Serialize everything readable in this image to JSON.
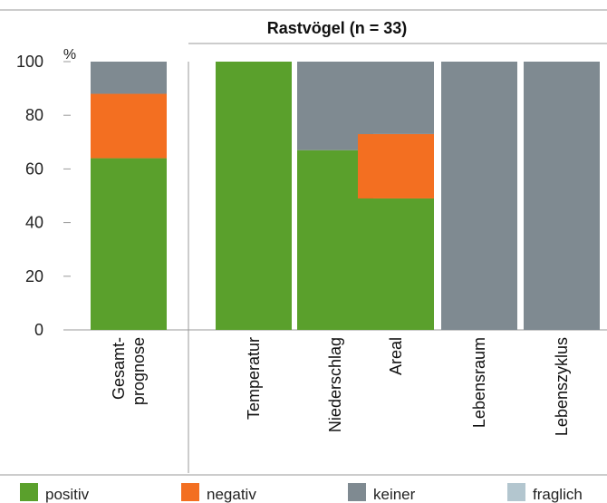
{
  "chart_data": {
    "type": "bar",
    "stacked": true,
    "title": "Rastvögel (n = 33)",
    "ylabel": "%",
    "ylim": [
      0,
      100
    ],
    "yticks": [
      0,
      20,
      40,
      60,
      80,
      100
    ],
    "categories": [
      [
        "Gesamt-",
        "prognose"
      ],
      [
        "Temperatur"
      ],
      [
        "Niederschlag"
      ],
      [
        "Areal"
      ],
      [
        "Lebensraum"
      ],
      [
        "Lebenszyklus"
      ]
    ],
    "series": [
      {
        "name": "positiv",
        "color": "#5aa02c",
        "values": [
          64,
          100,
          67,
          49,
          0,
          0
        ]
      },
      {
        "name": "negativ",
        "color": "#f36f21",
        "values": [
          24,
          0,
          0,
          24,
          0,
          0
        ]
      },
      {
        "name": "keiner",
        "color": "#7f8a91",
        "values": [
          12,
          0,
          33,
          27,
          100,
          100
        ]
      },
      {
        "name": "fraglich",
        "color": "#b3c6cf",
        "values": [
          0,
          0,
          0,
          0,
          0,
          0
        ]
      }
    ],
    "legend_position": "bottom",
    "grid": false
  }
}
